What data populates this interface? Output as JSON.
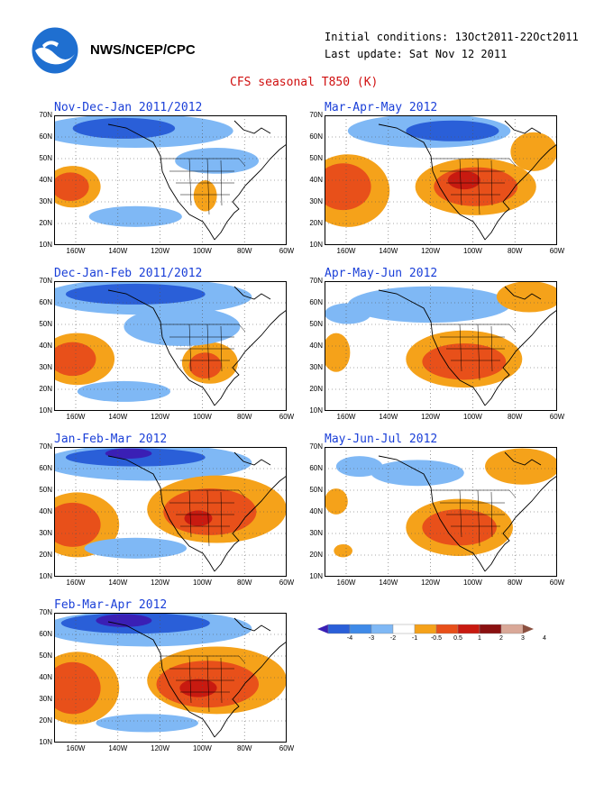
{
  "header": {
    "org": "NWS/NCEP/CPC",
    "initial": "Initial conditions: 13Oct2011-22Oct2011",
    "updated": "Last update: Sat Nov 12 2011",
    "title": "CFS seasonal T850 (K)"
  },
  "lat_labels": [
    "70N",
    "60N",
    "50N",
    "40N",
    "30N",
    "20N",
    "10N"
  ],
  "lon_labels": [
    "160W",
    "140W",
    "120W",
    "100W",
    "80W",
    "60W"
  ],
  "panels": [
    {
      "title": "Nov-Dec-Jan 2011/2012"
    },
    {
      "title": "Mar-Apr-May 2012"
    },
    {
      "title": "Dec-Jan-Feb 2011/2012"
    },
    {
      "title": "Apr-May-Jun 2012"
    },
    {
      "title": "Jan-Feb-Mar 2012"
    },
    {
      "title": "May-Jun-Jul 2012"
    },
    {
      "title": "Feb-Mar-Apr 2012"
    }
  ],
  "colorbar": {
    "labels": [
      "-4",
      "-3",
      "-2",
      "-1",
      "-0.5",
      "0.5",
      "1",
      "2",
      "3",
      "4"
    ],
    "colors": [
      "#3a1fb5",
      "#2a5fd8",
      "#3f8ae8",
      "#7fb8f5",
      "#ffffff",
      "#f5a21a",
      "#e8501a",
      "#c81a10",
      "#8a1010",
      "#d9a898",
      "#8a5040"
    ]
  }
}
